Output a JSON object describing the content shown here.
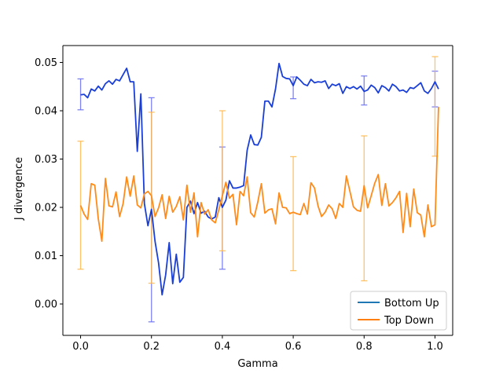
{
  "chart_data": {
    "type": "line",
    "title": "",
    "xlabel": "Gamma",
    "ylabel": "J divergence",
    "xlim": [
      -0.05,
      1.05
    ],
    "ylim": [
      -0.0065,
      0.0535
    ],
    "xticks": [
      0.0,
      0.2,
      0.4,
      0.6,
      0.8,
      1.0
    ],
    "xtick_labels": [
      "0.0",
      "0.2",
      "0.4",
      "0.6",
      "0.8",
      "1.0"
    ],
    "yticks": [
      0.0,
      0.01,
      0.02,
      0.03,
      0.04,
      0.05
    ],
    "ytick_labels": [
      "0.00",
      "0.01",
      "0.02",
      "0.03",
      "0.04",
      "0.05"
    ],
    "grid": false,
    "legend_position": "lower-right",
    "x_step": 0.01,
    "series": [
      {
        "name": "Bottom Up",
        "legend_color": "#1f77b4",
        "line_color": "#1a3fd6",
        "errorbar_color": "#6a6ff0",
        "values": [
          0.0433,
          0.0434,
          0.0427,
          0.0445,
          0.0441,
          0.0451,
          0.0443,
          0.0456,
          0.0462,
          0.0455,
          0.0465,
          0.0462,
          0.0475,
          0.0488,
          0.046,
          0.046,
          0.0316,
          0.0435,
          0.0208,
          0.0162,
          0.0196,
          0.013,
          0.0085,
          0.0019,
          0.006,
          0.0127,
          0.0042,
          0.0103,
          0.0045,
          0.0055,
          0.02,
          0.0213,
          0.0187,
          0.021,
          0.0188,
          0.0192,
          0.018,
          0.0176,
          0.018,
          0.022,
          0.02,
          0.0215,
          0.0255,
          0.024,
          0.024,
          0.0242,
          0.0245,
          0.0318,
          0.035,
          0.033,
          0.0329,
          0.0345,
          0.042,
          0.042,
          0.0408,
          0.0445,
          0.0498,
          0.0471,
          0.0467,
          0.0466,
          0.0452,
          0.047,
          0.0463,
          0.0455,
          0.0452,
          0.0465,
          0.0458,
          0.046,
          0.0459,
          0.0462,
          0.0446,
          0.0455,
          0.0452,
          0.0456,
          0.0436,
          0.045,
          0.0446,
          0.045,
          0.0445,
          0.0451,
          0.044,
          0.0443,
          0.0453,
          0.0448,
          0.0437,
          0.0452,
          0.0448,
          0.0441,
          0.0455,
          0.045,
          0.0441,
          0.0443,
          0.0438,
          0.0448,
          0.0446,
          0.0452,
          0.0458,
          0.0441,
          0.0436,
          0.0446,
          0.046,
          0.0445
        ],
        "errorbars": [
          {
            "x": 0.0,
            "low": 0.0402,
            "high": 0.0466
          },
          {
            "x": 0.2,
            "low": -0.0037,
            "high": 0.0427
          },
          {
            "x": 0.4,
            "low": 0.0072,
            "high": 0.0325
          },
          {
            "x": 0.6,
            "low": 0.0425,
            "high": 0.047
          },
          {
            "x": 0.8,
            "low": 0.0412,
            "high": 0.0472
          },
          {
            "x": 1.0,
            "low": 0.0408,
            "high": 0.0482
          }
        ]
      },
      {
        "name": "Top Down",
        "legend_color": "#ff7f0e",
        "line_color": "#ff8c1a",
        "errorbar_color": "#ffb84d",
        "values": [
          0.0204,
          0.0186,
          0.0175,
          0.0249,
          0.0246,
          0.0176,
          0.013,
          0.026,
          0.0203,
          0.0201,
          0.0232,
          0.0181,
          0.0208,
          0.0263,
          0.0223,
          0.0265,
          0.0205,
          0.0199,
          0.0228,
          0.0233,
          0.0224,
          0.0181,
          0.0199,
          0.0226,
          0.0177,
          0.0223,
          0.019,
          0.0202,
          0.0222,
          0.0174,
          0.0246,
          0.019,
          0.023,
          0.0139,
          0.021,
          0.0186,
          0.0195,
          0.0174,
          0.0168,
          0.0195,
          0.0224,
          0.0252,
          0.0219,
          0.0227,
          0.0164,
          0.0233,
          0.0224,
          0.0263,
          0.0189,
          0.018,
          0.0211,
          0.0249,
          0.0188,
          0.0195,
          0.0197,
          0.0166,
          0.023,
          0.02,
          0.0199,
          0.0187,
          0.019,
          0.0187,
          0.0185,
          0.0208,
          0.0186,
          0.0251,
          0.024,
          0.0203,
          0.0181,
          0.019,
          0.0205,
          0.0197,
          0.0177,
          0.0208,
          0.02,
          0.0265,
          0.0233,
          0.0201,
          0.0194,
          0.0192,
          0.0245,
          0.0199,
          0.0224,
          0.025,
          0.0268,
          0.0204,
          0.0249,
          0.0203,
          0.021,
          0.022,
          0.0233,
          0.0148,
          0.0229,
          0.016,
          0.0238,
          0.0189,
          0.0184,
          0.0139,
          0.0205,
          0.016,
          0.0164,
          0.0408
        ],
        "errorbars": [
          {
            "x": 0.0,
            "low": 0.0072,
            "high": 0.0337
          },
          {
            "x": 0.2,
            "low": 0.0043,
            "high": 0.0397
          },
          {
            "x": 0.4,
            "low": 0.011,
            "high": 0.04
          },
          {
            "x": 0.6,
            "low": 0.0069,
            "high": 0.0305
          },
          {
            "x": 0.8,
            "low": 0.0048,
            "high": 0.0348
          },
          {
            "x": 1.0,
            "low": 0.0306,
            "high": 0.0512
          }
        ]
      }
    ]
  }
}
